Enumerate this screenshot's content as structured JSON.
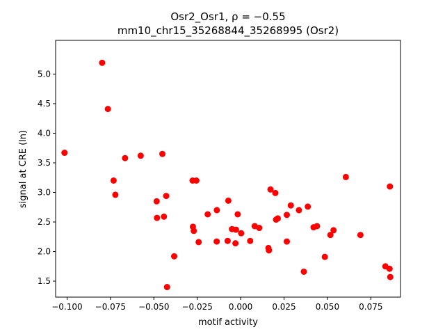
{
  "chart_data": {
    "type": "scatter",
    "title_line1": "Osr2_Osr1, ρ = −0.55",
    "title_line2": "mm10_chr15_35268844_35268995 (Osr2)",
    "xlabel": "motif activity",
    "ylabel": "signal at CRE (ln)",
    "xlim": [
      -0.1066,
      0.0921
    ],
    "ylim": [
      1.23,
      5.57
    ],
    "xticks": [
      -0.1,
      -0.075,
      -0.05,
      -0.025,
      0.0,
      0.025,
      0.05,
      0.075
    ],
    "xtick_labels": [
      "−0.100",
      "−0.075",
      "−0.050",
      "−0.025",
      "0.000",
      "0.025",
      "0.050",
      "0.075"
    ],
    "yticks": [
      1.5,
      2.0,
      2.5,
      3.0,
      3.5,
      4.0,
      4.5,
      5.0
    ],
    "ytick_labels": [
      "1.5",
      "2.0",
      "2.5",
      "3.0",
      "3.5",
      "4.0",
      "4.5",
      "5.0"
    ],
    "grid": false,
    "marker_color": "#ff0000",
    "points": [
      {
        "x": -0.1015,
        "y": 3.67
      },
      {
        "x": -0.0798,
        "y": 5.19
      },
      {
        "x": -0.0765,
        "y": 4.41
      },
      {
        "x": -0.0732,
        "y": 3.2
      },
      {
        "x": -0.0722,
        "y": 2.96
      },
      {
        "x": -0.0666,
        "y": 3.58
      },
      {
        "x": -0.0576,
        "y": 3.62
      },
      {
        "x": -0.0484,
        "y": 2.85
      },
      {
        "x": -0.0482,
        "y": 2.57
      },
      {
        "x": -0.0451,
        "y": 3.65
      },
      {
        "x": -0.0442,
        "y": 2.59
      },
      {
        "x": -0.0429,
        "y": 2.94
      },
      {
        "x": -0.0424,
        "y": 1.4
      },
      {
        "x": -0.0383,
        "y": 1.92
      },
      {
        "x": -0.0277,
        "y": 3.2
      },
      {
        "x": -0.0275,
        "y": 2.42
      },
      {
        "x": -0.027,
        "y": 2.35
      },
      {
        "x": -0.0255,
        "y": 3.2
      },
      {
        "x": -0.0242,
        "y": 2.16
      },
      {
        "x": -0.019,
        "y": 2.63
      },
      {
        "x": -0.0137,
        "y": 2.7
      },
      {
        "x": -0.0138,
        "y": 2.17
      },
      {
        "x": -0.0075,
        "y": 2.18
      },
      {
        "x": -0.0071,
        "y": 2.86
      },
      {
        "x": -0.005,
        "y": 2.38
      },
      {
        "x": -0.0027,
        "y": 2.37
      },
      {
        "x": -0.003,
        "y": 2.14
      },
      {
        "x": -0.0017,
        "y": 2.63
      },
      {
        "x": 0.0003,
        "y": 2.31
      },
      {
        "x": 0.0055,
        "y": 2.18
      },
      {
        "x": 0.0081,
        "y": 2.43
      },
      {
        "x": 0.0107,
        "y": 2.4
      },
      {
        "x": 0.016,
        "y": 2.06
      },
      {
        "x": 0.0163,
        "y": 2.02
      },
      {
        "x": 0.0172,
        "y": 3.05
      },
      {
        "x": 0.02,
        "y": 2.99
      },
      {
        "x": 0.0204,
        "y": 2.54
      },
      {
        "x": 0.0214,
        "y": 2.56
      },
      {
        "x": 0.0266,
        "y": 2.62
      },
      {
        "x": 0.0266,
        "y": 2.17
      },
      {
        "x": 0.0289,
        "y": 2.78
      },
      {
        "x": 0.0336,
        "y": 2.7
      },
      {
        "x": 0.0364,
        "y": 1.66
      },
      {
        "x": 0.0387,
        "y": 2.76
      },
      {
        "x": 0.042,
        "y": 2.41
      },
      {
        "x": 0.044,
        "y": 2.43
      },
      {
        "x": 0.0485,
        "y": 1.91
      },
      {
        "x": 0.0517,
        "y": 2.28
      },
      {
        "x": 0.0535,
        "y": 2.36
      },
      {
        "x": 0.0606,
        "y": 3.26
      },
      {
        "x": 0.069,
        "y": 2.28
      },
      {
        "x": 0.0834,
        "y": 1.75
      },
      {
        "x": 0.0858,
        "y": 1.71
      },
      {
        "x": 0.086,
        "y": 3.1
      },
      {
        "x": 0.0862,
        "y": 1.57
      }
    ]
  }
}
